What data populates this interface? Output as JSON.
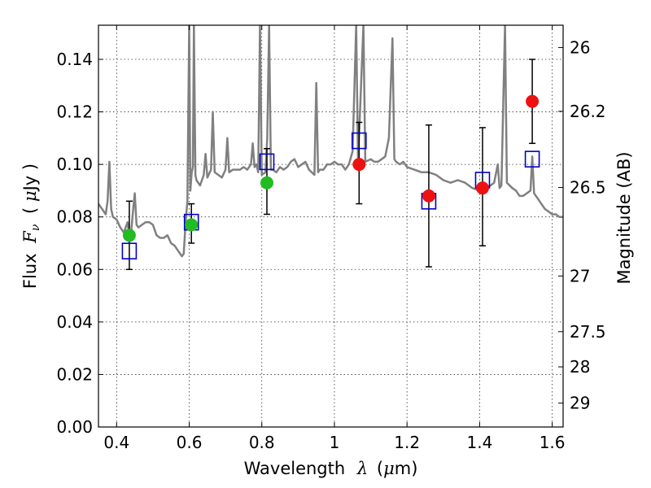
{
  "chart_data": {
    "type": "scatter",
    "title": "",
    "xlabel": "Wavelength",
    "xlabel_symbol": "λ",
    "xlabel_unit": "(",
    "xlabel_unit_math": "μ",
    "xlabel_unit_rest": "m)",
    "ylabel": "Flux",
    "ylabel_symbol": "F",
    "ylabel_subscript": "ν",
    "ylabel_unit": "( ",
    "ylabel_unit_math": "μ",
    "ylabel_unit_rest": "Jy )",
    "y2label": "Magnitude (AB)",
    "xlim": [
      0.35,
      1.63
    ],
    "ylim": [
      0.0,
      0.153
    ],
    "grid": true,
    "x_ticks": [
      0.4,
      0.6,
      0.8,
      1.0,
      1.2,
      1.4,
      1.6
    ],
    "x_tick_labels": [
      "0.4",
      "0.6",
      "0.8",
      "1",
      "1.2",
      "1.4",
      "1.6"
    ],
    "y_ticks": [
      0.0,
      0.02,
      0.04,
      0.06,
      0.08,
      0.1,
      0.12,
      0.14
    ],
    "y_tick_labels": [
      "0.00",
      "0.02",
      "0.04",
      "0.06",
      "0.08",
      "0.10",
      "0.12",
      "0.14"
    ],
    "y2_ticks": [
      {
        "label": "26",
        "flux": 0.1445
      },
      {
        "label": "26.2",
        "flux": 0.1202
      },
      {
        "label": "26.5",
        "flux": 0.0912
      },
      {
        "label": "27",
        "flux": 0.0575
      },
      {
        "label": "27.5",
        "flux": 0.0363
      },
      {
        "label": "28",
        "flux": 0.0229
      },
      {
        "label": "29",
        "flux": 0.0091
      }
    ],
    "series": [
      {
        "name": "model spectrum",
        "style": "line",
        "color": "#808080",
        "points": [
          [
            0.35,
            0.085
          ],
          [
            0.36,
            0.083
          ],
          [
            0.37,
            0.081
          ],
          [
            0.375,
            0.086
          ],
          [
            0.38,
            0.101
          ],
          [
            0.385,
            0.083
          ],
          [
            0.39,
            0.08
          ],
          [
            0.4,
            0.079
          ],
          [
            0.41,
            0.076
          ],
          [
            0.42,
            0.074
          ],
          [
            0.43,
            0.078
          ],
          [
            0.435,
            0.073
          ],
          [
            0.44,
            0.074
          ],
          [
            0.445,
            0.082
          ],
          [
            0.45,
            0.089
          ],
          [
            0.455,
            0.077
          ],
          [
            0.46,
            0.076
          ],
          [
            0.47,
            0.077
          ],
          [
            0.48,
            0.078
          ],
          [
            0.49,
            0.078
          ],
          [
            0.5,
            0.077
          ],
          [
            0.51,
            0.073
          ],
          [
            0.52,
            0.072
          ],
          [
            0.53,
            0.072
          ],
          [
            0.54,
            0.073
          ],
          [
            0.55,
            0.07
          ],
          [
            0.56,
            0.069
          ],
          [
            0.57,
            0.067
          ],
          [
            0.58,
            0.065
          ],
          [
            0.585,
            0.066
          ],
          [
            0.59,
            0.078
          ],
          [
            0.595,
            0.086
          ],
          [
            0.6,
            0.153
          ],
          [
            0.603,
            0.09
          ],
          [
            0.607,
            0.097
          ],
          [
            0.61,
            0.099
          ],
          [
            0.613,
            0.153
          ],
          [
            0.617,
            0.096
          ],
          [
            0.62,
            0.094
          ],
          [
            0.63,
            0.092
          ],
          [
            0.64,
            0.096
          ],
          [
            0.645,
            0.104
          ],
          [
            0.65,
            0.095
          ],
          [
            0.66,
            0.098
          ],
          [
            0.665,
            0.12
          ],
          [
            0.67,
            0.097
          ],
          [
            0.68,
            0.096
          ],
          [
            0.69,
            0.095
          ],
          [
            0.7,
            0.098
          ],
          [
            0.705,
            0.11
          ],
          [
            0.71,
            0.097
          ],
          [
            0.72,
            0.098
          ],
          [
            0.73,
            0.098
          ],
          [
            0.74,
            0.098
          ],
          [
            0.75,
            0.099
          ],
          [
            0.76,
            0.098
          ],
          [
            0.77,
            0.1
          ],
          [
            0.775,
            0.108
          ],
          [
            0.78,
            0.099
          ],
          [
            0.785,
            0.1
          ],
          [
            0.79,
            0.097
          ],
          [
            0.795,
            0.153
          ],
          [
            0.8,
            0.096
          ],
          [
            0.81,
            0.097
          ],
          [
            0.815,
            0.11
          ],
          [
            0.82,
            0.153
          ],
          [
            0.825,
            0.098
          ],
          [
            0.83,
            0.098
          ],
          [
            0.84,
            0.097
          ],
          [
            0.85,
            0.099
          ],
          [
            0.86,
            0.098
          ],
          [
            0.87,
            0.099
          ],
          [
            0.88,
            0.101
          ],
          [
            0.89,
            0.102
          ],
          [
            0.9,
            0.099
          ],
          [
            0.91,
            0.1
          ],
          [
            0.92,
            0.101
          ],
          [
            0.93,
            0.098
          ],
          [
            0.945,
            0.096
          ],
          [
            0.95,
            0.131
          ],
          [
            0.955,
            0.097
          ],
          [
            0.96,
            0.098
          ],
          [
            0.97,
            0.098
          ],
          [
            0.98,
            0.1
          ],
          [
            0.99,
            0.1
          ],
          [
            1.0,
            0.101
          ],
          [
            1.01,
            0.1
          ],
          [
            1.02,
            0.1
          ],
          [
            1.03,
            0.098
          ],
          [
            1.04,
            0.1
          ],
          [
            1.05,
            0.105
          ],
          [
            1.06,
            0.153
          ],
          [
            1.065,
            0.101
          ],
          [
            1.08,
            0.153
          ],
          [
            1.085,
            0.101
          ],
          [
            1.1,
            0.102
          ],
          [
            1.11,
            0.101
          ],
          [
            1.12,
            0.101
          ],
          [
            1.13,
            0.102
          ],
          [
            1.14,
            0.103
          ],
          [
            1.15,
            0.11
          ],
          [
            1.16,
            0.148
          ],
          [
            1.165,
            0.102
          ],
          [
            1.17,
            0.101
          ],
          [
            1.18,
            0.1
          ],
          [
            1.19,
            0.101
          ],
          [
            1.2,
            0.099
          ],
          [
            1.22,
            0.098
          ],
          [
            1.24,
            0.097
          ],
          [
            1.26,
            0.097
          ],
          [
            1.28,
            0.096
          ],
          [
            1.3,
            0.094
          ],
          [
            1.32,
            0.093
          ],
          [
            1.34,
            0.094
          ],
          [
            1.36,
            0.093
          ],
          [
            1.38,
            0.091
          ],
          [
            1.4,
            0.09
          ],
          [
            1.42,
            0.091
          ],
          [
            1.44,
            0.093
          ],
          [
            1.45,
            0.1
          ],
          [
            1.455,
            0.091
          ],
          [
            1.46,
            0.092
          ],
          [
            1.47,
            0.153
          ],
          [
            1.475,
            0.093
          ],
          [
            1.49,
            0.091
          ],
          [
            1.5,
            0.09
          ],
          [
            1.51,
            0.088
          ],
          [
            1.52,
            0.088
          ],
          [
            1.53,
            0.089
          ],
          [
            1.54,
            0.09
          ],
          [
            1.545,
            0.103
          ],
          [
            1.55,
            0.089
          ],
          [
            1.56,
            0.087
          ],
          [
            1.57,
            0.085
          ],
          [
            1.58,
            0.083
          ],
          [
            1.59,
            0.082
          ],
          [
            1.6,
            0.081
          ],
          [
            1.61,
            0.081
          ],
          [
            1.62,
            0.08
          ],
          [
            1.63,
            0.08
          ]
        ]
      },
      {
        "name": "observed (green)",
        "style": "marker-circle",
        "color": "#22bb22",
        "points": [
          {
            "x": 0.435,
            "y": 0.073,
            "ylo": 0.06,
            "yhi": 0.086
          },
          {
            "x": 0.606,
            "y": 0.077,
            "ylo": 0.07,
            "yhi": 0.085
          },
          {
            "x": 0.814,
            "y": 0.093,
            "ylo": 0.081,
            "yhi": 0.106
          }
        ]
      },
      {
        "name": "observed (red)",
        "style": "marker-circle",
        "color": "#ee1111",
        "points": [
          {
            "x": 1.068,
            "y": 0.1,
            "ylo": 0.085,
            "yhi": 0.116
          },
          {
            "x": 1.26,
            "y": 0.088,
            "ylo": 0.061,
            "yhi": 0.115
          },
          {
            "x": 1.408,
            "y": 0.091,
            "ylo": 0.069,
            "yhi": 0.114
          },
          {
            "x": 1.545,
            "y": 0.124,
            "ylo": 0.108,
            "yhi": 0.14
          }
        ]
      },
      {
        "name": "model photometry",
        "style": "marker-square",
        "color": "#0000cc",
        "points": [
          {
            "x": 0.435,
            "y": 0.067
          },
          {
            "x": 0.606,
            "y": 0.078
          },
          {
            "x": 0.814,
            "y": 0.101
          },
          {
            "x": 1.068,
            "y": 0.109
          },
          {
            "x": 1.26,
            "y": 0.086
          },
          {
            "x": 1.408,
            "y": 0.094
          },
          {
            "x": 1.545,
            "y": 0.102
          }
        ]
      }
    ]
  }
}
